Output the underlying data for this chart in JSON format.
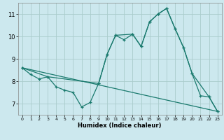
{
  "xlabel": "Humidex (Indice chaleur)",
  "background_color": "#cce8ee",
  "grid_color": "#aacccc",
  "line_color": "#1a7a6e",
  "xlim": [
    -0.5,
    23.5
  ],
  "ylim": [
    6.5,
    11.5
  ],
  "yticks": [
    7,
    8,
    9,
    10,
    11
  ],
  "xticks": [
    0,
    1,
    2,
    3,
    4,
    5,
    6,
    7,
    8,
    9,
    10,
    11,
    12,
    13,
    14,
    15,
    16,
    17,
    18,
    19,
    20,
    21,
    22,
    23
  ],
  "line1_x": [
    0,
    1,
    2,
    3,
    4,
    5,
    6,
    7,
    8,
    9,
    10,
    11,
    12,
    13,
    14,
    15,
    16,
    17,
    18,
    19,
    20,
    21,
    22,
    23
  ],
  "line1_y": [
    8.6,
    8.3,
    8.1,
    8.2,
    7.75,
    7.6,
    7.5,
    6.85,
    7.05,
    7.9,
    9.2,
    10.05,
    9.85,
    10.1,
    9.55,
    10.65,
    11.0,
    11.25,
    10.35,
    9.5,
    8.35,
    7.35,
    7.3,
    6.65
  ],
  "line2_x": [
    0,
    3,
    9,
    10,
    11,
    13,
    14,
    15,
    16,
    17,
    18,
    19,
    20,
    22,
    23
  ],
  "line2_y": [
    8.6,
    8.2,
    7.9,
    9.2,
    10.05,
    10.1,
    9.55,
    10.65,
    11.0,
    11.25,
    10.35,
    9.5,
    8.35,
    7.3,
    6.65
  ],
  "line3_x": [
    0,
    23
  ],
  "line3_y": [
    8.6,
    6.65
  ]
}
